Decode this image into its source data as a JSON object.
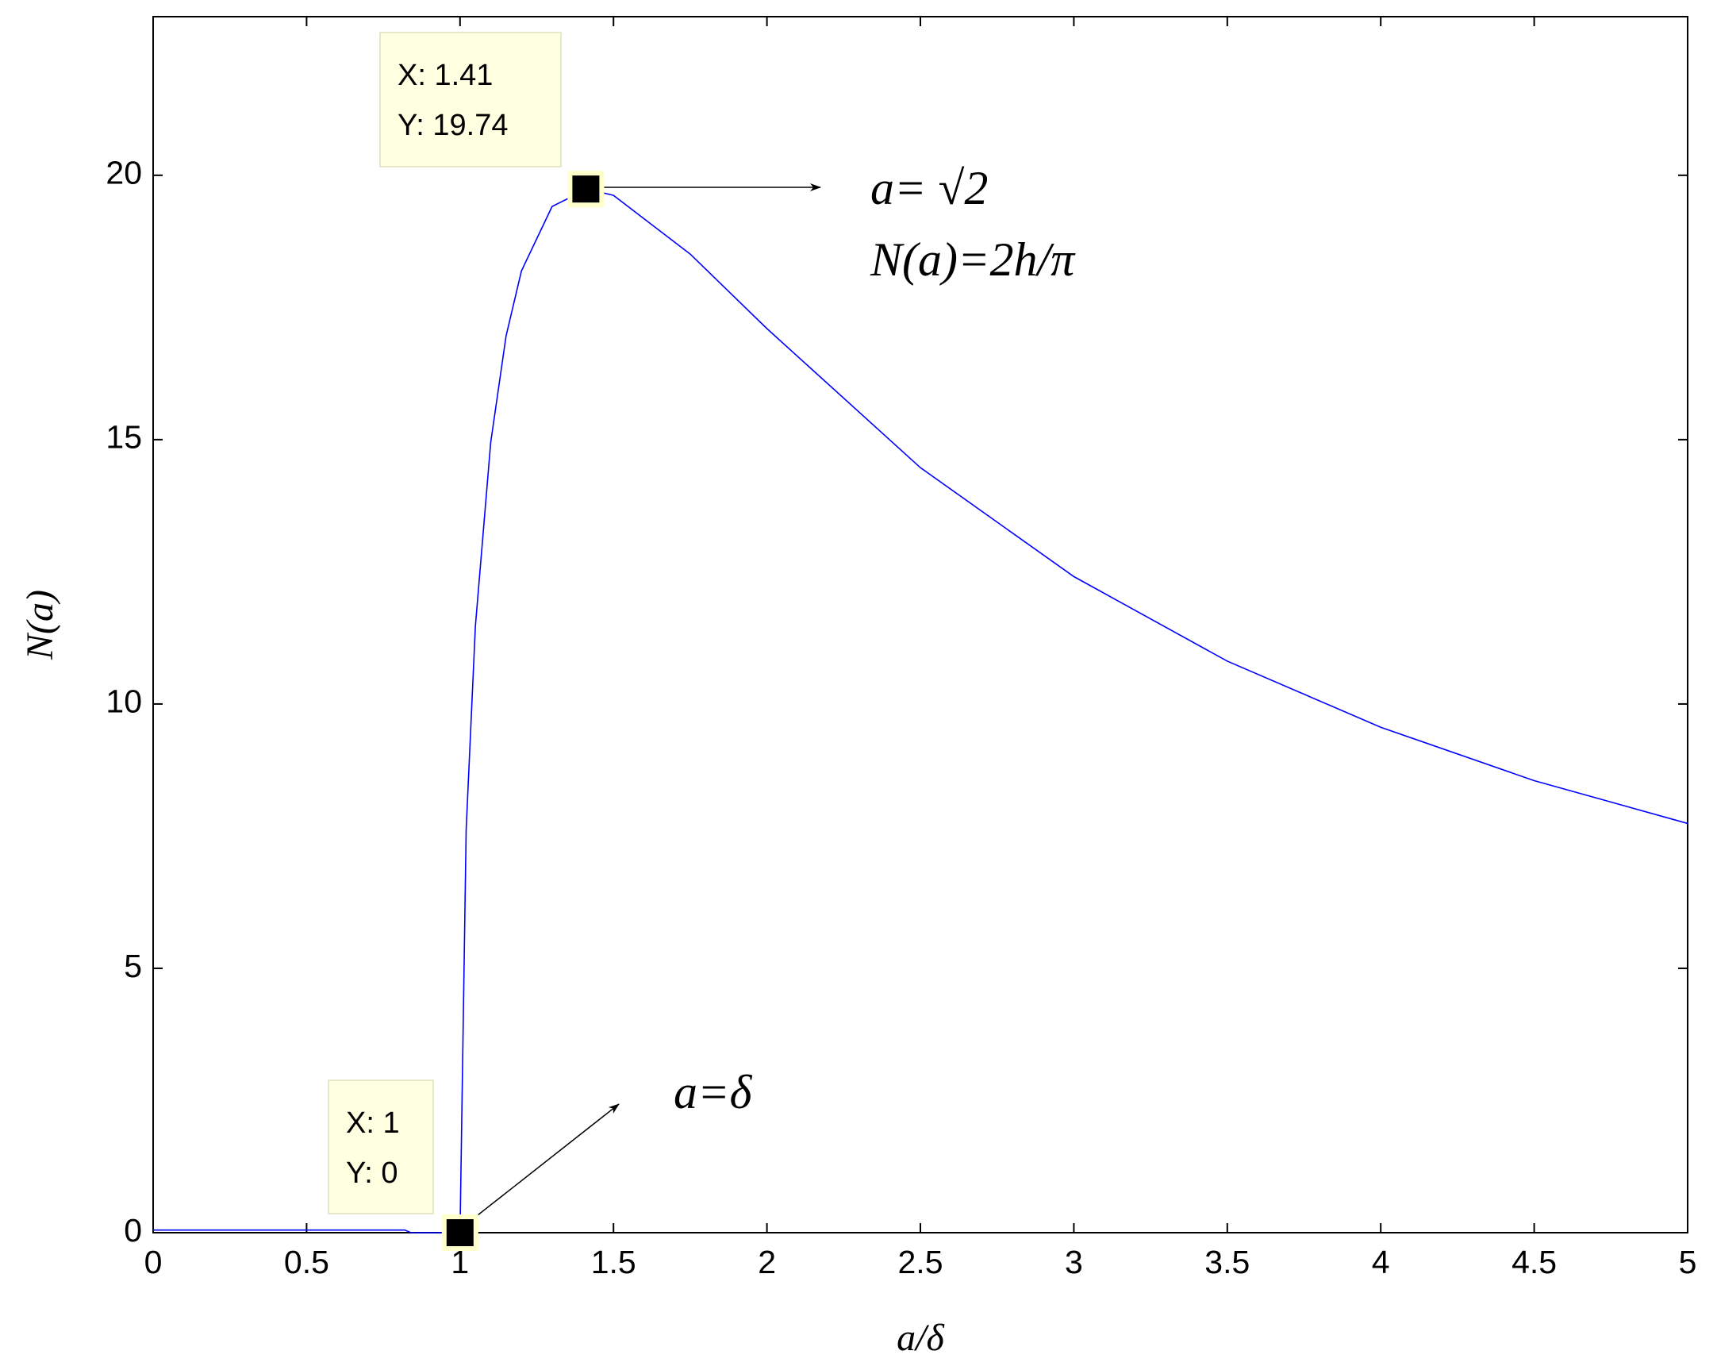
{
  "chart_data": {
    "type": "line",
    "xlabel": "a/δ",
    "ylabel": "N(a)",
    "x": [
      0,
      0.82,
      0.84,
      1,
      1.02,
      1.05,
      1.1,
      1.15,
      1.2,
      1.3,
      1.414,
      1.5,
      1.75,
      2,
      2.5,
      3,
      3.5,
      4,
      4.5,
      5
    ],
    "series": [
      {
        "color": "#0000ff",
        "values": [
          0.05,
          0.05,
          0,
          0,
          7.63,
          11.47,
          14.95,
          16.96,
          18.19,
          19.41,
          19.74,
          19.62,
          18.51,
          17.1,
          14.47,
          12.41,
          10.81,
          9.56,
          8.55,
          7.74
        ]
      }
    ],
    "xlim": [
      0,
      5
    ],
    "ylim": [
      0,
      23
    ],
    "xticks": [
      0,
      0.5,
      1,
      1.5,
      2,
      2.5,
      3,
      3.5,
      4,
      4.5,
      5
    ],
    "yticks": [
      0,
      5,
      10,
      15,
      20
    ],
    "datatips": [
      {
        "x": 1.41,
        "y": 19.74,
        "x_label": "X: 1.41",
        "y_label": "Y: 19.74"
      },
      {
        "x": 1,
        "y": 0,
        "x_label": "X: 1",
        "y_label": "Y: 0"
      }
    ],
    "annotations": [
      "a= √2",
      "N(a)=2h/π",
      "a=δ"
    ]
  }
}
